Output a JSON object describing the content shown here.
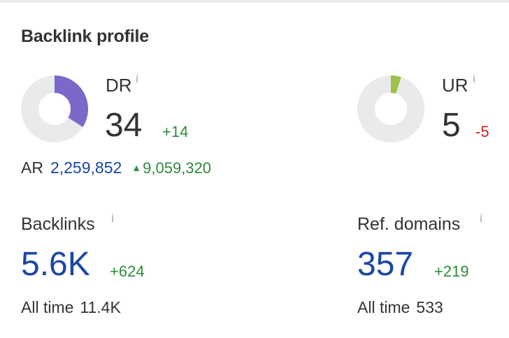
{
  "card": {
    "title": "Backlink profile"
  },
  "dr": {
    "label": "DR",
    "info": "i",
    "value": "34",
    "change": "+14",
    "ring_fraction": 0.34,
    "ring_color": "#7b68c8",
    "track_color": "#e9eaec"
  },
  "ur": {
    "label": "UR",
    "info": "i",
    "value": "5",
    "change": "-5",
    "ring_fraction": 0.05,
    "ring_color": "#9cc24a",
    "track_color": "#e9eaec"
  },
  "ar": {
    "label": "AR",
    "value": "2,259,852",
    "arrow": "▲",
    "change": "9,059,320"
  },
  "backlinks": {
    "label": "Backlinks",
    "info": "i",
    "value": "5.6K",
    "change": "+624",
    "all_time_label": "All time",
    "all_time_value": "11.4K"
  },
  "ref_domains": {
    "label": "Ref. domains",
    "info": "i",
    "value": "357",
    "change": "+219",
    "all_time_label": "All time",
    "all_time_value": "533"
  },
  "colors": {
    "accent_blue": "#1a46a6",
    "positive_green": "#2e8b3c",
    "negative_red": "#cc2222"
  }
}
